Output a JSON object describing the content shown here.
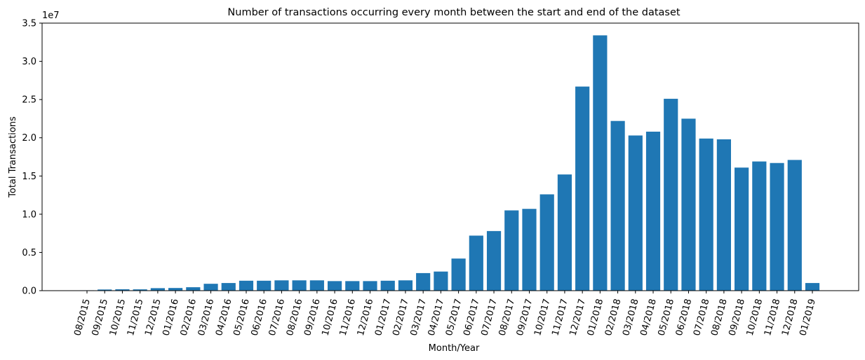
{
  "chart_data": {
    "type": "bar",
    "title": "Number of transactions occurring every month between the start and end of the dataset",
    "xlabel": "Month/Year",
    "ylabel": "Total Transactions",
    "y_offset_label": "1e7",
    "ylim": [
      0,
      35000000
    ],
    "yticks": [
      0,
      5000000,
      10000000,
      15000000,
      20000000,
      25000000,
      30000000,
      35000000
    ],
    "ytick_labels": [
      "0.0",
      "0.5",
      "1.0",
      "1.5",
      "2.0",
      "2.5",
      "3.0",
      "3.5"
    ],
    "grid": false,
    "bar_color": "#1f77b4",
    "categories": [
      "08/2015",
      "09/2015",
      "10/2015",
      "11/2015",
      "12/2015",
      "01/2016",
      "02/2016",
      "03/2016",
      "04/2016",
      "05/2016",
      "06/2016",
      "07/2016",
      "08/2016",
      "09/2016",
      "10/2016",
      "11/2016",
      "12/2016",
      "01/2017",
      "02/2017",
      "03/2017",
      "04/2017",
      "05/2017",
      "06/2017",
      "07/2017",
      "08/2017",
      "09/2017",
      "10/2017",
      "11/2017",
      "12/2017",
      "01/2018",
      "02/2018",
      "03/2018",
      "04/2018",
      "05/2018",
      "06/2018",
      "07/2018",
      "08/2018",
      "09/2018",
      "10/2018",
      "11/2018",
      "12/2018",
      "01/2019"
    ],
    "values": [
      50000,
      150000,
      180000,
      170000,
      330000,
      350000,
      450000,
      900000,
      1000000,
      1300000,
      1300000,
      1350000,
      1350000,
      1350000,
      1250000,
      1250000,
      1250000,
      1300000,
      1350000,
      2300000,
      2500000,
      4200000,
      7200000,
      7800000,
      10500000,
      10700000,
      12600000,
      15200000,
      26700000,
      33400000,
      22200000,
      20300000,
      20800000,
      25100000,
      22500000,
      19900000,
      19800000,
      16100000,
      16900000,
      16700000,
      17100000,
      1000000
    ]
  }
}
